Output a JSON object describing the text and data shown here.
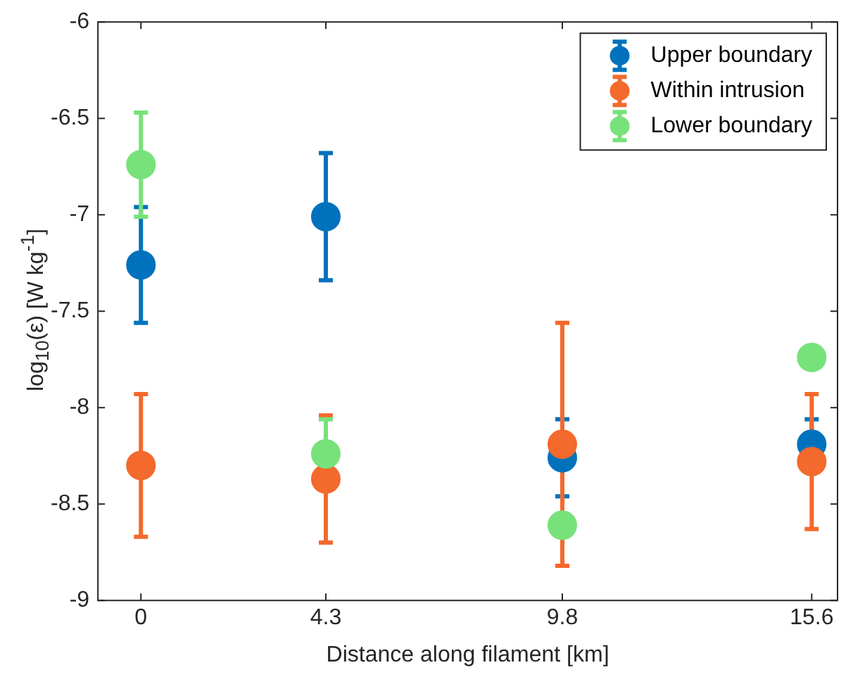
{
  "chart_data": {
    "type": "scatter",
    "xlabel": "Distance along filament [km]",
    "ylabel": "log$_{10}$(ε) [W kg$^{-1}$]",
    "x": [
      0,
      4.3,
      9.8,
      15.6
    ],
    "xlim": [
      -1,
      16.2
    ],
    "xticks": [
      0,
      4.3,
      9.8,
      15.6
    ],
    "ylim": [
      -9,
      -6
    ],
    "yticks": [
      -9,
      -8.5,
      -8,
      -7.5,
      -7,
      -6.5,
      -6
    ],
    "grid": false,
    "legend": "top right",
    "marker": "circle",
    "series": [
      {
        "name": "Upper boundary",
        "color": "#0072bd",
        "values": [
          -7.26,
          -7.01,
          -8.26,
          -8.19
        ],
        "errors": [
          0.3,
          0.33,
          0.2,
          0.13
        ]
      },
      {
        "name": "Within intrusion",
        "color": "#f4692c",
        "values": [
          -8.3,
          -8.37,
          -8.19,
          -8.28
        ],
        "errors": [
          0.37,
          0.33,
          0.63,
          0.35
        ]
      },
      {
        "name": "Lower boundary",
        "color": "#77e27a",
        "values": [
          -6.74,
          -8.24,
          -8.61,
          -7.74
        ],
        "errors": [
          0.27,
          0.18,
          null,
          null
        ]
      }
    ]
  }
}
